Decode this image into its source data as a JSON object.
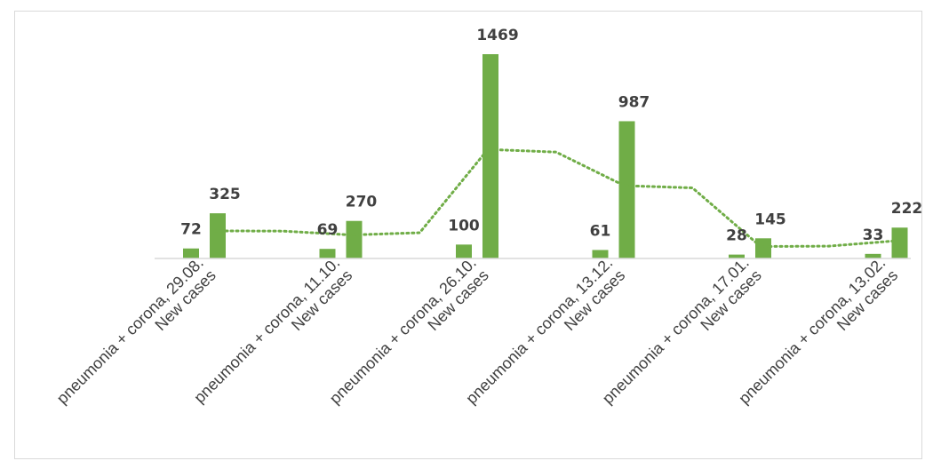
{
  "chart_data": {
    "type": "bar",
    "categories": [
      [
        "pneumonia + corona, 29.08.",
        "New cases"
      ],
      [
        "pneumonia + corona, 11.10.",
        "New cases"
      ],
      [
        "pneumonia + corona, 26.10.",
        "New cases"
      ],
      [
        "pneumonia + corona, 13.12.",
        "New cases"
      ],
      [
        "pneumonia + corona, 17.01.",
        "New cases"
      ],
      [
        "pneumonia + corona, 13.02.",
        "New cases"
      ]
    ],
    "x": [
      "pneumonia + corona, 29.08.",
      "New cases",
      "pneumonia + corona, 11.10.",
      "New cases",
      "pneumonia + corona, 26.10.",
      "New cases",
      "pneumonia + corona, 13.12.",
      "New cases",
      "pneumonia + corona, 17.01.",
      "New cases",
      "pneumonia + corona, 13.02.",
      "New cases"
    ],
    "values": [
      72,
      325,
      69,
      270,
      100,
      1469,
      61,
      987,
      28,
      145,
      33,
      222
    ],
    "trendline": {
      "style": "dotted",
      "type": "moving-average"
    },
    "ylim": [
      0,
      1469
    ],
    "grid": false,
    "legend": "none",
    "colors": {
      "bar": "#70ad47",
      "trendline": "#70ad47",
      "axis": "#d9d9d9",
      "text": "#404040"
    }
  }
}
